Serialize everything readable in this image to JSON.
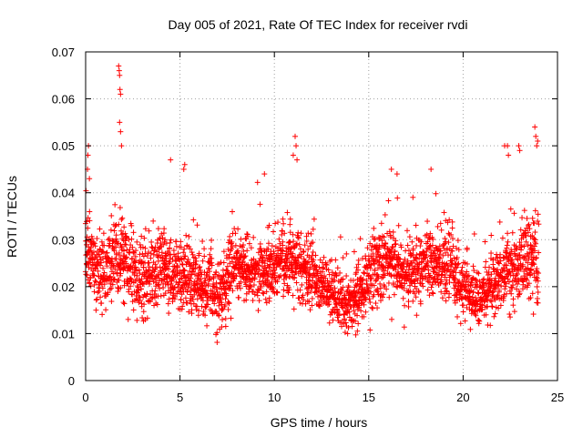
{
  "chart_data": {
    "type": "scatter",
    "title": "Day 005 of 2021, Rate Of TEC Index for receiver rvdi",
    "xlabel": "GPS time / hours",
    "ylabel": "ROTI / TECUs",
    "xlim": [
      0,
      25
    ],
    "ylim": [
      0,
      0.07
    ],
    "xticks": [
      0,
      5,
      10,
      15,
      20,
      25
    ],
    "xtick_labels": [
      "0",
      "5",
      "10",
      "15",
      "20",
      "25"
    ],
    "yticks": [
      0,
      0.01,
      0.02,
      0.03,
      0.04,
      0.05,
      0.06,
      0.07
    ],
    "ytick_labels": [
      "0",
      "0.01",
      "0.02",
      "0.03",
      "0.04",
      "0.05",
      "0.06",
      "0.07"
    ],
    "grid": true,
    "marker": "+",
    "color": "#ff0000",
    "series": [
      {
        "name": "rvdi",
        "x_start": 0.0,
        "x_step": 0.02,
        "profile": [
          [
            0.0,
            0.028,
            0.006
          ],
          [
            0.5,
            0.024,
            0.006
          ],
          [
            1.0,
            0.022,
            0.006
          ],
          [
            1.5,
            0.026,
            0.007
          ],
          [
            2.0,
            0.025,
            0.007
          ],
          [
            3.0,
            0.021,
            0.006
          ],
          [
            4.0,
            0.024,
            0.006
          ],
          [
            5.0,
            0.022,
            0.006
          ],
          [
            6.0,
            0.021,
            0.005
          ],
          [
            7.0,
            0.018,
            0.006
          ],
          [
            8.0,
            0.024,
            0.006
          ],
          [
            9.0,
            0.023,
            0.005
          ],
          [
            10.0,
            0.024,
            0.005
          ],
          [
            11.0,
            0.026,
            0.006
          ],
          [
            12.0,
            0.022,
            0.005
          ],
          [
            13.0,
            0.018,
            0.005
          ],
          [
            14.0,
            0.016,
            0.004
          ],
          [
            15.0,
            0.022,
            0.006
          ],
          [
            16.0,
            0.026,
            0.006
          ],
          [
            17.0,
            0.022,
            0.005
          ],
          [
            18.0,
            0.026,
            0.006
          ],
          [
            19.0,
            0.025,
            0.006
          ],
          [
            20.0,
            0.02,
            0.005
          ],
          [
            21.0,
            0.018,
            0.004
          ],
          [
            22.0,
            0.022,
            0.005
          ],
          [
            23.0,
            0.026,
            0.007
          ],
          [
            24.0,
            0.025,
            0.007
          ]
        ],
        "spikes": [
          [
            0.1,
            0.045
          ],
          [
            0.12,
            0.048
          ],
          [
            0.15,
            0.05
          ],
          [
            0.2,
            0.043
          ],
          [
            1.75,
            0.067
          ],
          [
            1.78,
            0.066
          ],
          [
            1.8,
            0.065
          ],
          [
            1.82,
            0.062
          ],
          [
            1.85,
            0.061
          ],
          [
            1.8,
            0.055
          ],
          [
            1.85,
            0.053
          ],
          [
            1.9,
            0.05
          ],
          [
            4.5,
            0.047
          ],
          [
            5.2,
            0.045
          ],
          [
            5.25,
            0.046
          ],
          [
            11.0,
            0.048
          ],
          [
            11.1,
            0.052
          ],
          [
            11.15,
            0.05
          ],
          [
            11.2,
            0.047
          ],
          [
            16.2,
            0.045
          ],
          [
            16.5,
            0.044
          ],
          [
            18.3,
            0.045
          ],
          [
            22.2,
            0.05
          ],
          [
            22.35,
            0.05
          ],
          [
            22.4,
            0.048
          ],
          [
            22.95,
            0.05
          ],
          [
            23.0,
            0.049
          ],
          [
            23.8,
            0.054
          ],
          [
            23.85,
            0.052
          ],
          [
            23.9,
            0.05
          ],
          [
            23.95,
            0.051
          ]
        ]
      }
    ]
  }
}
